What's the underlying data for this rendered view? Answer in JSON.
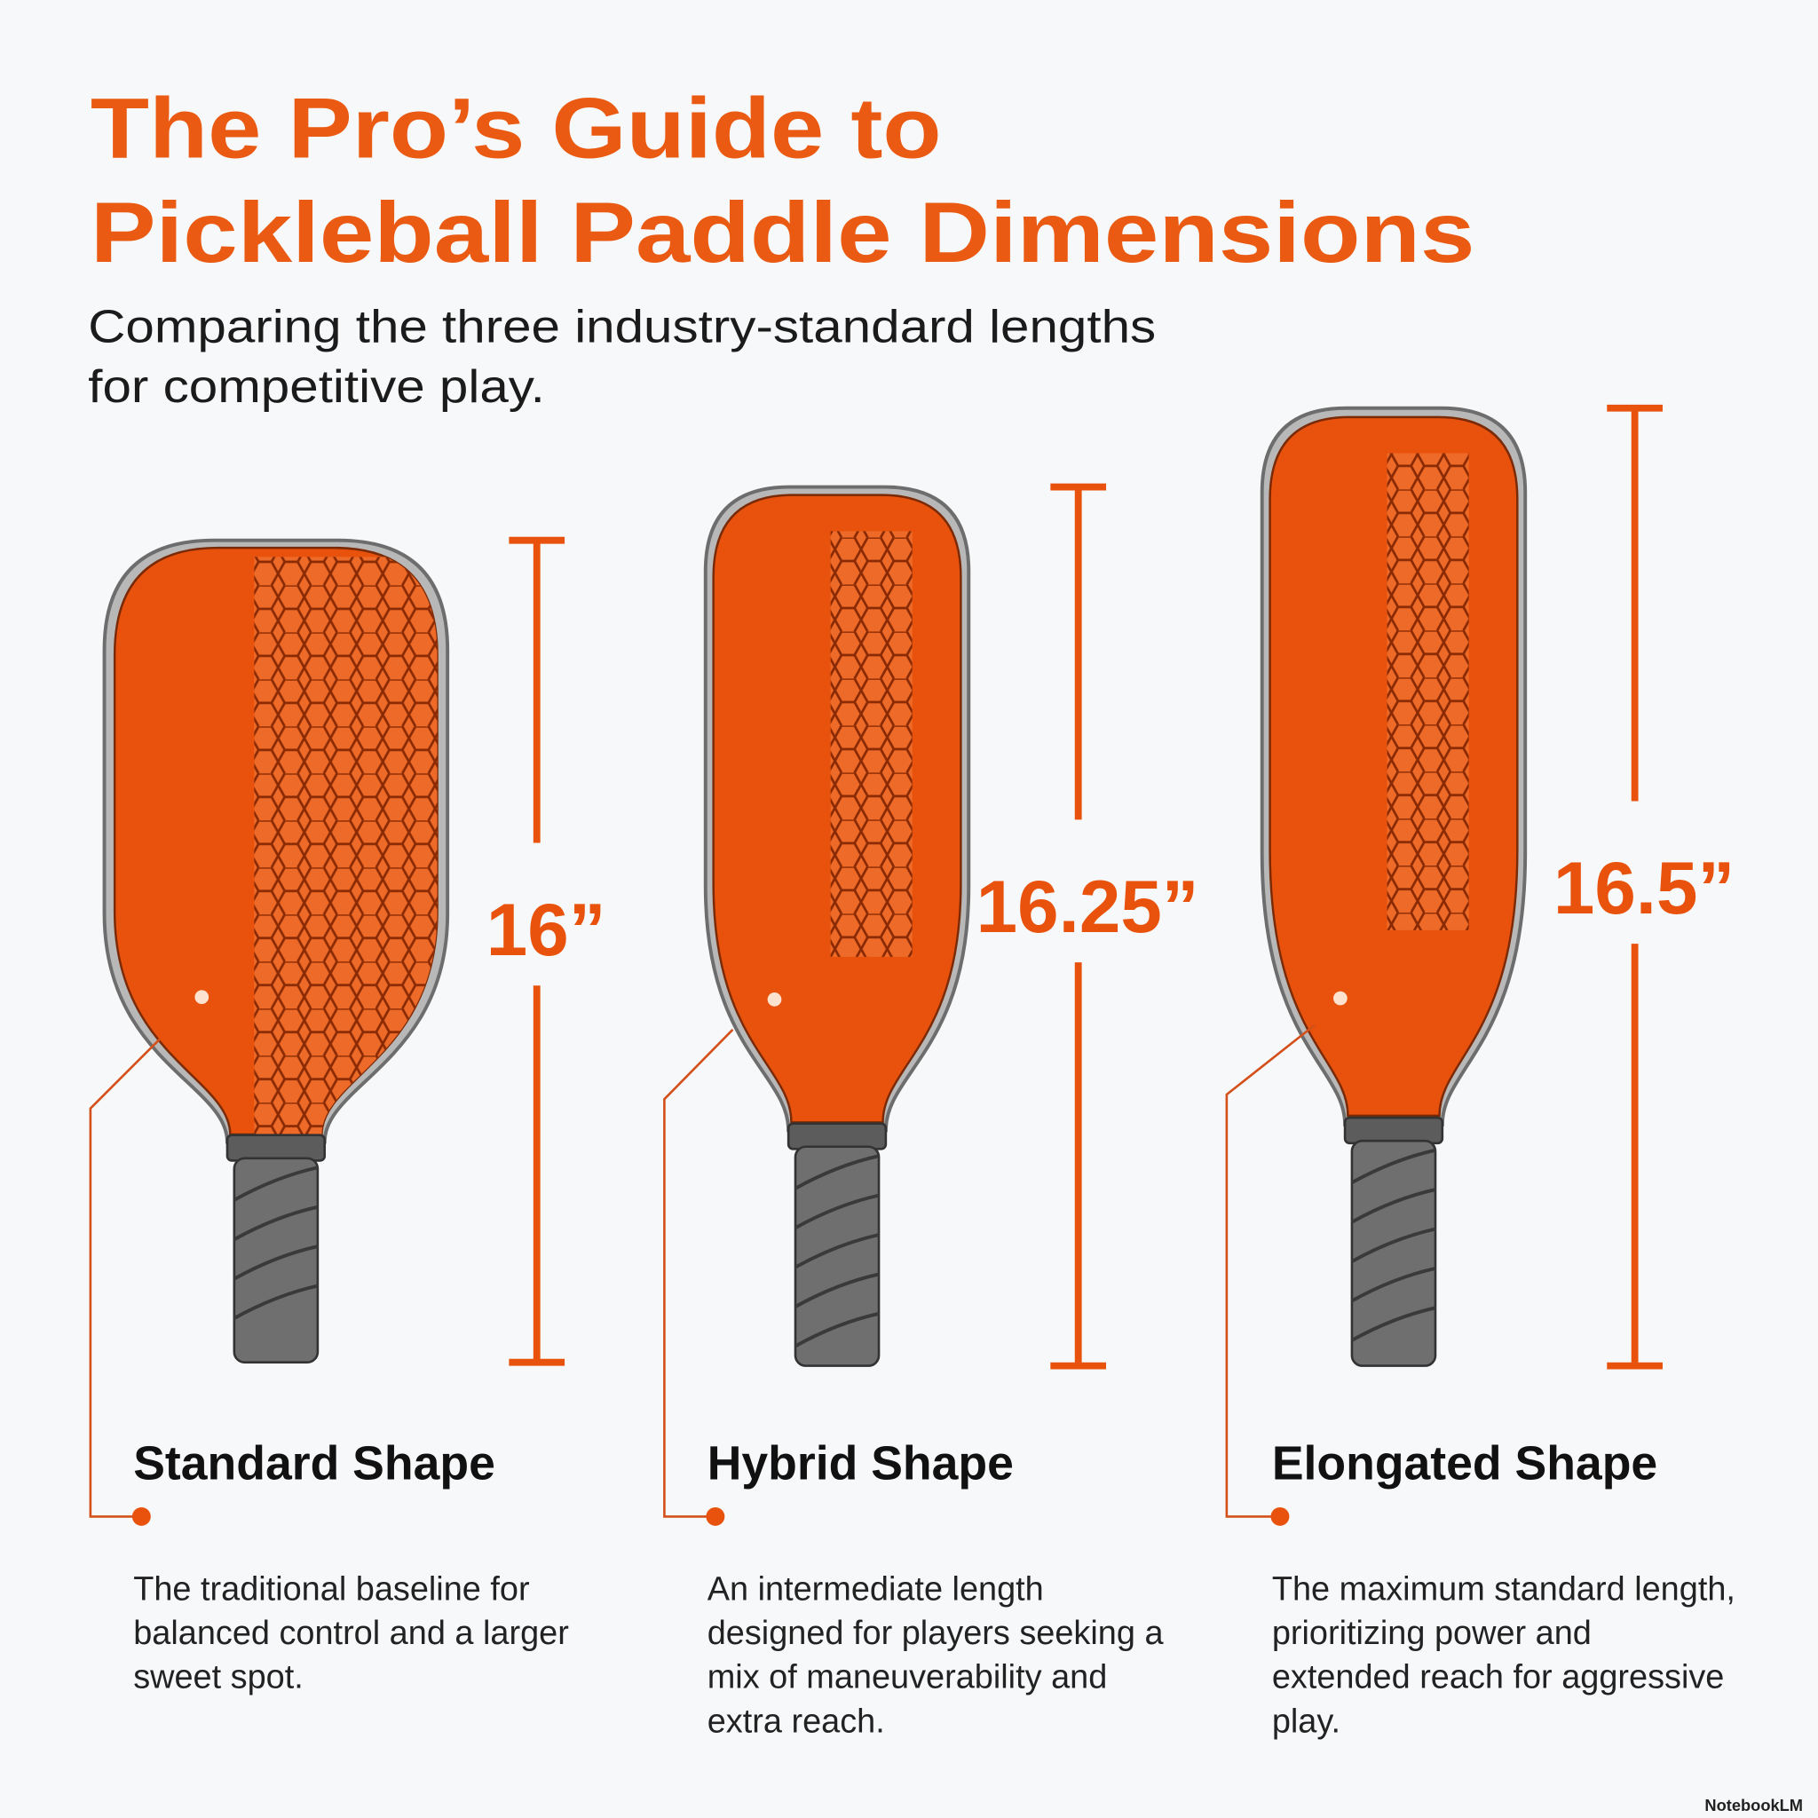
{
  "header": {
    "title": [
      "The Pro’s Guide to",
      "Pickleball Paddle Dimensions"
    ],
    "subtitle": [
      "Comparing the three industry-standard lengths",
      "for competitive play."
    ]
  },
  "paddles": [
    {
      "dimension": "16”",
      "name": "Standard Shape",
      "description": "The traditional baseline for balanced control and a larger sweet spot."
    },
    {
      "dimension": "16.25”",
      "name": "Hybrid Shape",
      "description": "An intermediate length designed for players seeking a mix of maneuverability and extra reach."
    },
    {
      "dimension": "16.5”",
      "name": "Elongated Shape",
      "description": "The maximum standard length, prioritizing power and extended reach for aggressive play."
    }
  ],
  "footer": "NotebookLM"
}
